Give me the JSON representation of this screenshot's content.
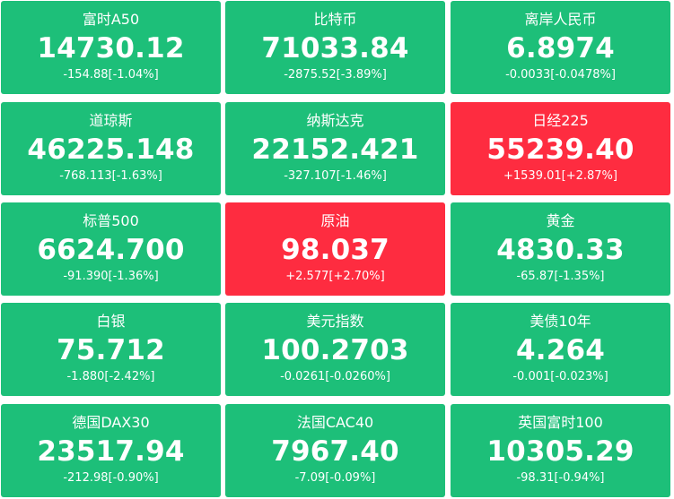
{
  "tiles": [
    {
      "name": "富时A50",
      "value": "14730.12",
      "change": "-154.88[-1.04%]",
      "trend": "down"
    },
    {
      "name": "比特币",
      "value": "71033.84",
      "change": "-2875.52[-3.89%]",
      "trend": "down"
    },
    {
      "name": "离岸人民币",
      "value": "6.8974",
      "change": "-0.0033[-0.0478%]",
      "trend": "down"
    },
    {
      "name": "道琼斯",
      "value": "46225.148",
      "change": "-768.113[-1.63%]",
      "trend": "down"
    },
    {
      "name": "纳斯达克",
      "value": "22152.421",
      "change": "-327.107[-1.46%]",
      "trend": "down"
    },
    {
      "name": "日经225",
      "value": "55239.40",
      "change": "+1539.01[+2.87%]",
      "trend": "up"
    },
    {
      "name": "标普500",
      "value": "6624.700",
      "change": "-91.390[-1.36%]",
      "trend": "down"
    },
    {
      "name": "原油",
      "value": "98.037",
      "change": "+2.577[+2.70%]",
      "trend": "up"
    },
    {
      "name": "黄金",
      "value": "4830.33",
      "change": "-65.87[-1.35%]",
      "trend": "down"
    },
    {
      "name": "白银",
      "value": "75.712",
      "change": "-1.880[-2.42%]",
      "trend": "down"
    },
    {
      "name": "美元指数",
      "value": "100.2703",
      "change": "-0.0261[-0.0260%]",
      "trend": "down"
    },
    {
      "name": "美债10年",
      "value": "4.264",
      "change": "-0.001[-0.023%]",
      "trend": "down"
    },
    {
      "name": "德国DAX30",
      "value": "23517.94",
      "change": "-212.98[-0.90%]",
      "trend": "down"
    },
    {
      "name": "法国CAC40",
      "value": "7967.40",
      "change": "-7.09[-0.09%]",
      "trend": "down"
    },
    {
      "name": "英国富时100",
      "value": "10305.29",
      "change": "-98.31[-0.94%]",
      "trend": "down"
    }
  ],
  "colors": {
    "down": "#1dbf79",
    "up": "#fe2c40",
    "text": "#ffffff"
  }
}
